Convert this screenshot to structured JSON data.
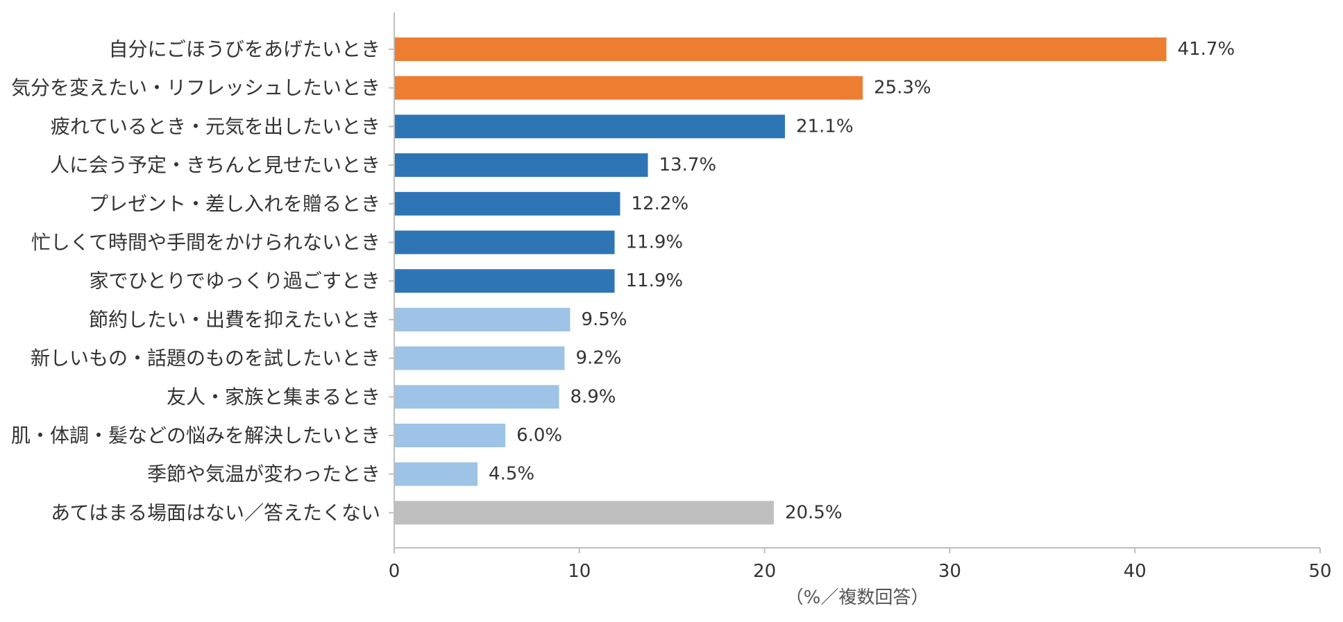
{
  "chart_data": {
    "type": "bar",
    "orientation": "horizontal",
    "title": "",
    "xlabel": "（%／複数回答）",
    "ylabel": "",
    "xlim": [
      0,
      50
    ],
    "xticks": [
      0,
      10,
      20,
      30,
      40,
      50
    ],
    "grid": false,
    "legend": "none",
    "value_suffix": "%",
    "categories": [
      "自分にごほうびをあげたいとき",
      "気分を変えたい・リフレッシュしたいとき",
      "疲れているとき・元気を出したいとき",
      "人に会う予定・きちんと見せたいとき",
      "プレゼント・差し入れを贈るとき",
      "忙しくて時間や手間をかけられないとき",
      "家でひとりでゆっくり過ごすとき",
      "節約したい・出費を抑えたいとき",
      "新しいもの・話題のものを試したいとき",
      "友人・家族と集まるとき",
      "肌・体調・髪などの悩みを解決したいとき",
      "季節や気温が変わったとき",
      "あてはまる場面はない／答えたくない"
    ],
    "values": [
      41.7,
      25.3,
      21.1,
      13.7,
      12.2,
      11.9,
      11.9,
      9.5,
      9.2,
      8.9,
      6.0,
      4.5,
      20.5
    ],
    "value_labels": [
      "41.7%",
      "25.3%",
      "21.1%",
      "13.7%",
      "12.2%",
      "11.9%",
      "11.9%",
      "9.5%",
      "9.2%",
      "8.9%",
      "6.0%",
      "4.5%",
      "20.5%"
    ],
    "bar_colors": [
      "#ED7D31",
      "#ED7D31",
      "#2E75B6",
      "#2E75B6",
      "#2E75B6",
      "#2E75B6",
      "#2E75B6",
      "#9DC3E6",
      "#9DC3E6",
      "#9DC3E6",
      "#9DC3E6",
      "#9DC3E6",
      "#BFBFBF"
    ],
    "axis_color": "#BFBFBF"
  }
}
